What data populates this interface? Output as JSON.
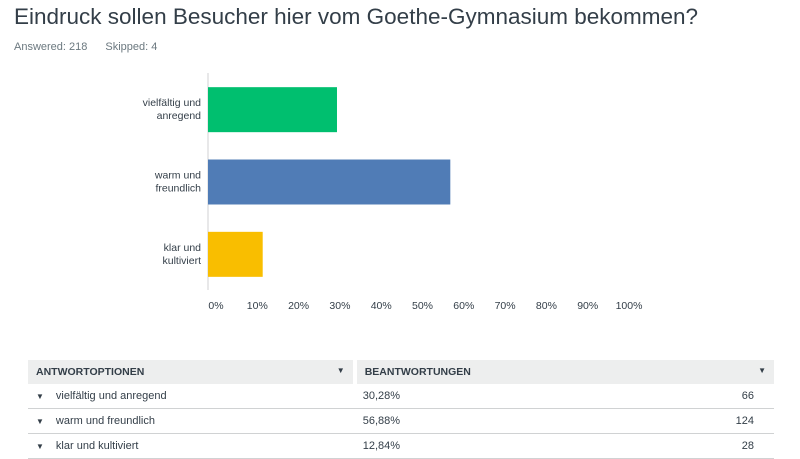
{
  "header": {
    "title": "Eindruck sollen Besucher hier vom Goethe-Gymnasium bekommen?",
    "answered": "Answered: 218",
    "skipped": "Skipped: 4"
  },
  "chart_data": {
    "type": "bar",
    "orientation": "horizontal",
    "categories": [
      "vielfältig und anregend",
      "warm und freundlich",
      "klar und kultiviert"
    ],
    "category_lines": [
      [
        "vielfältig und",
        "anregend"
      ],
      [
        "warm und",
        "freundlich"
      ],
      [
        "klar und",
        "kultiviert"
      ]
    ],
    "values": [
      30.28,
      56.88,
      12.84
    ],
    "colors": [
      "#00bf6f",
      "#507cb6",
      "#f9be00"
    ],
    "xlim": [
      0,
      100
    ],
    "xticks": [
      "0%",
      "10%",
      "20%",
      "30%",
      "40%",
      "50%",
      "60%",
      "70%",
      "80%",
      "90%",
      "100%"
    ]
  },
  "table": {
    "headers": [
      "ANTWORTOPTIONEN",
      "BEANTWORTUNGEN"
    ],
    "rows": [
      {
        "label": "vielfältig und anregend",
        "pct": "30,28%",
        "count": "66"
      },
      {
        "label": "warm und freundlich",
        "pct": "56,88%",
        "count": "124"
      },
      {
        "label": "klar und kultiviert",
        "pct": "12,84%",
        "count": "28"
      }
    ]
  }
}
